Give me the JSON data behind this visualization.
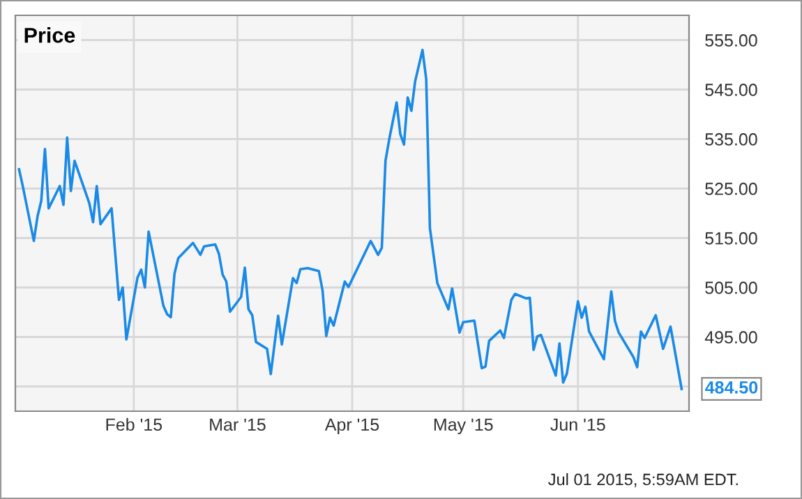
{
  "chart_data": {
    "type": "line",
    "title": "Price",
    "x": [
      "2015-01-01",
      "2015-01-02",
      "2015-01-05",
      "2015-01-06",
      "2015-01-07",
      "2015-01-08",
      "2015-01-09",
      "2015-01-12",
      "2015-01-13",
      "2015-01-14",
      "2015-01-15",
      "2015-01-16",
      "2015-01-20",
      "2015-01-21",
      "2015-01-22",
      "2015-01-23",
      "2015-01-26",
      "2015-01-28",
      "2015-01-29",
      "2015-01-30",
      "2015-02-02",
      "2015-02-03",
      "2015-02-04",
      "2015-02-05",
      "2015-02-09",
      "2015-02-10",
      "2015-02-11",
      "2015-02-12",
      "2015-02-13",
      "2015-02-17",
      "2015-02-19",
      "2015-02-20",
      "2015-02-23",
      "2015-02-24",
      "2015-02-25",
      "2015-02-26",
      "2015-02-27",
      "2015-03-02",
      "2015-03-03",
      "2015-03-04",
      "2015-03-05",
      "2015-03-06",
      "2015-03-09",
      "2015-03-10",
      "2015-03-12",
      "2015-03-13",
      "2015-03-16",
      "2015-03-17",
      "2015-03-18",
      "2015-03-20",
      "2015-03-23",
      "2015-03-24",
      "2015-03-25",
      "2015-03-26",
      "2015-03-27",
      "2015-03-30",
      "2015-03-31",
      "2015-04-06",
      "2015-04-08",
      "2015-04-09",
      "2015-04-10",
      "2015-04-11",
      "2015-04-13",
      "2015-04-14",
      "2015-04-15",
      "2015-04-16",
      "2015-04-17",
      "2015-04-18",
      "2015-04-20",
      "2015-04-21",
      "2015-04-22",
      "2015-04-24",
      "2015-04-27",
      "2015-04-28",
      "2015-04-30",
      "2015-05-01",
      "2015-05-04",
      "2015-05-06",
      "2015-05-07",
      "2015-05-08",
      "2015-05-11",
      "2015-05-12",
      "2015-05-14",
      "2015-05-15",
      "2015-05-18",
      "2015-05-19",
      "2015-05-20",
      "2015-05-21",
      "2015-05-22",
      "2015-05-26",
      "2015-05-27",
      "2015-05-28",
      "2015-05-29",
      "2015-06-01",
      "2015-06-02",
      "2015-06-03",
      "2015-06-04",
      "2015-06-08",
      "2015-06-10",
      "2015-06-11",
      "2015-06-12",
      "2015-06-16",
      "2015-06-17",
      "2015-06-18",
      "2015-06-19",
      "2015-06-22",
      "2015-06-24",
      "2015-06-26",
      "2015-06-29"
    ],
    "series": [
      {
        "color": "#1a8ae6",
        "values": [
          528.9,
          525.5,
          514.4,
          519.4,
          522.5,
          533.0,
          521.0,
          525.5,
          521.7,
          535.3,
          524.5,
          530.6,
          522.0,
          518.2,
          525.5,
          517.8,
          521.0,
          502.5,
          505.0,
          494.5,
          507.0,
          508.6,
          505.0,
          516.3,
          501.3,
          499.6,
          499.0,
          507.8,
          510.9,
          514.0,
          511.6,
          513.3,
          513.7,
          511.8,
          507.6,
          506.2,
          500.1,
          503.1,
          509.0,
          500.6,
          499.4,
          494.0,
          492.6,
          487.5,
          499.3,
          493.5,
          506.9,
          505.9,
          508.7,
          508.9,
          508.3,
          504.4,
          495.2,
          498.9,
          497.3,
          506.2,
          505.1,
          514.4,
          511.6,
          513.0,
          530.6,
          534.9,
          542.4,
          536.0,
          533.9,
          543.4,
          540.7,
          546.6,
          553.0,
          547.1,
          517.0,
          505.9,
          500.6,
          504.8,
          495.9,
          498.0,
          498.3,
          488.7,
          489.0,
          494.2,
          496.3,
          494.8,
          502.5,
          503.7,
          502.8,
          502.9,
          492.4,
          495.1,
          495.4,
          487.2,
          493.7,
          485.8,
          487.6,
          502.2,
          498.9,
          501.1,
          496.1,
          490.5,
          504.2,
          498.2,
          495.9,
          490.9,
          488.9,
          496.1,
          494.8,
          499.4,
          492.6,
          497.1,
          484.5
        ]
      }
    ],
    "xlim": [
      "2014-12-31",
      "2015-07-01"
    ],
    "ylim": [
      480,
      560
    ],
    "xticks": [
      {
        "value": "2015-02-01",
        "label": "Feb '15"
      },
      {
        "value": "2015-03-01",
        "label": "Mar '15"
      },
      {
        "value": "2015-04-01",
        "label": "Apr '15"
      },
      {
        "value": "2015-05-01",
        "label": "May '15"
      },
      {
        "value": "2015-06-01",
        "label": "Jun '15"
      }
    ],
    "yticks": [
      {
        "value": 485,
        "label": null
      },
      {
        "value": 495,
        "label": "495.00"
      },
      {
        "value": 505,
        "label": "505.00"
      },
      {
        "value": 515,
        "label": "515.00"
      },
      {
        "value": 525,
        "label": "525.00"
      },
      {
        "value": 535,
        "label": "535.00"
      },
      {
        "value": 545,
        "label": "545.00"
      },
      {
        "value": 555,
        "label": "555.00"
      }
    ],
    "grid": true,
    "annotations": [
      {
        "text": "484.50",
        "x": "2015-06-29",
        "y": 484.5
      },
      "Jul 01 2015, 5:59AM EDT."
    ]
  }
}
